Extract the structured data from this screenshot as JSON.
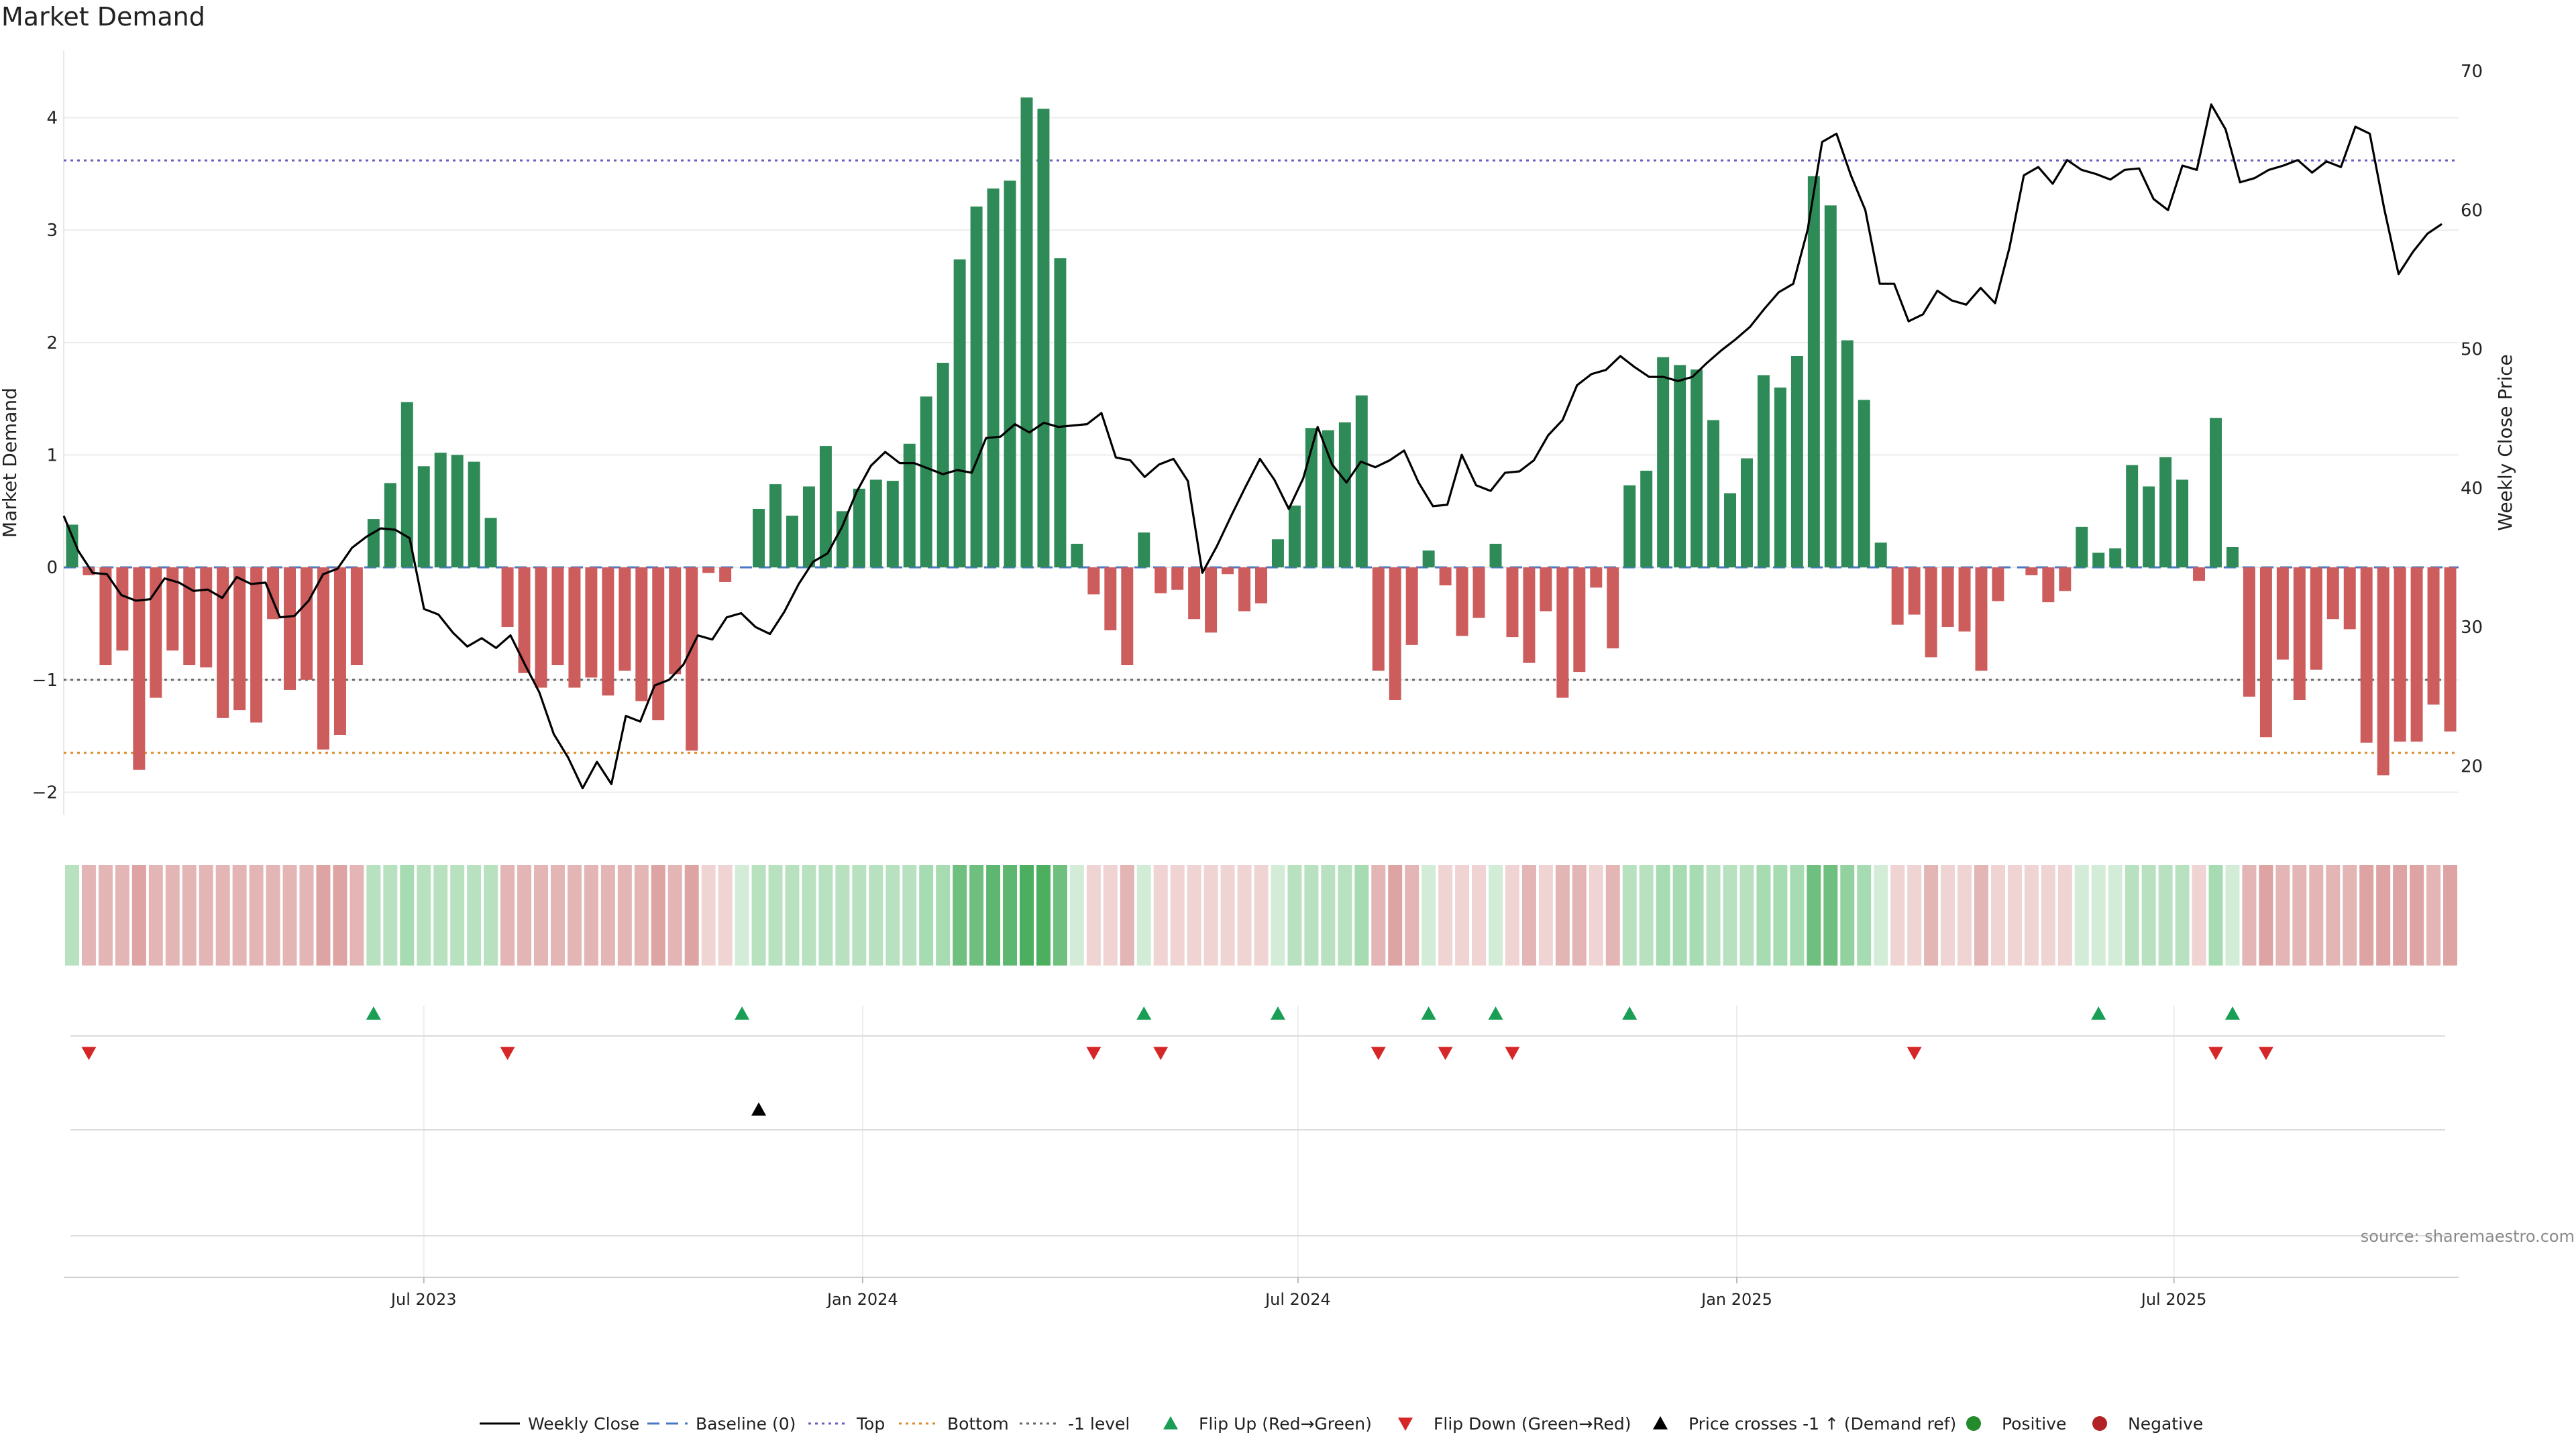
{
  "chart_data": {
    "type": "bar",
    "title": "Market Demand",
    "ylabel_left": "Market Demand",
    "ylabel_right": "Weekly Close Price",
    "ylim_left": [
      -2.2,
      4.6
    ],
    "yticks_left": [
      -2,
      -1,
      0,
      1,
      2,
      3,
      4
    ],
    "ytick_labels_left": [
      "−2",
      "−1",
      "0",
      "1",
      "2",
      "3",
      "4"
    ],
    "ylim_right": [
      16.5,
      71.5
    ],
    "yticks_right": [
      20,
      30,
      40,
      50,
      60,
      70
    ],
    "xtick_labels": [
      "Jul 2023",
      "Jan 2024",
      "Jul 2024",
      "Jan 2025",
      "Jul 2025"
    ],
    "xtick_week_index": [
      21.5,
      47.7,
      73.7,
      99.9,
      126.0
    ],
    "reference_lines": [
      {
        "name": "Baseline (0)",
        "value": 0,
        "color": "#4a78c4",
        "style": "dashed"
      },
      {
        "name": "Top",
        "value": 3.62,
        "color": "#6a5fc1",
        "style": "dotted"
      },
      {
        "name": "Bottom",
        "value": -1.65,
        "color": "#d98b2b",
        "style": "dotted"
      },
      {
        "name": "-1 level",
        "value": -1.0,
        "color": "#666666",
        "style": "dotted"
      }
    ],
    "demand": [
      0.38,
      -0.07,
      -0.87,
      -0.74,
      -1.8,
      -1.16,
      -0.74,
      -0.87,
      -0.89,
      -1.34,
      -1.27,
      -1.38,
      -0.46,
      -1.09,
      -1.0,
      -1.62,
      -1.49,
      -0.87,
      0.43,
      0.75,
      1.47,
      0.9,
      1.02,
      1.0,
      0.94,
      0.44,
      -0.53,
      -0.94,
      -1.07,
      -0.87,
      -1.07,
      -0.98,
      -1.14,
      -0.92,
      -1.19,
      -1.36,
      -0.95,
      -1.63,
      -0.05,
      -0.13,
      0.0,
      0.52,
      0.74,
      0.46,
      0.72,
      1.08,
      0.5,
      0.7,
      0.78,
      0.77,
      1.1,
      1.52,
      1.82,
      2.74,
      3.21,
      3.37,
      3.44,
      4.18,
      4.08,
      2.75,
      0.21,
      -0.24,
      -0.56,
      -0.87,
      0.31,
      -0.23,
      -0.2,
      -0.46,
      -0.58,
      -0.06,
      -0.39,
      -0.32,
      0.25,
      0.55,
      1.24,
      1.22,
      1.29,
      1.53,
      -0.92,
      -1.18,
      -0.69,
      0.15,
      -0.16,
      -0.61,
      -0.45,
      0.21,
      -0.62,
      -0.85,
      -0.39,
      -1.16,
      -0.93,
      -0.18,
      -0.72,
      0.73,
      0.86,
      1.87,
      1.8,
      1.76,
      1.31,
      0.66,
      0.97,
      1.71,
      1.6,
      1.88,
      3.48,
      3.22,
      2.02,
      1.49,
      0.22,
      -0.51,
      -0.42,
      -0.8,
      -0.53,
      -0.57,
      -0.92,
      -0.3,
      0.0,
      -0.07,
      -0.31,
      -0.21,
      0.36,
      0.13,
      0.17,
      0.91,
      0.72,
      0.98,
      0.78,
      -0.12,
      1.33,
      0.18,
      -1.15,
      -1.51,
      -0.82,
      -1.18,
      -0.91,
      -0.46,
      -0.55,
      -1.56,
      -1.85,
      -1.55,
      -1.55,
      -1.22,
      -1.46
    ],
    "weekly_close": [
      38.0,
      35.5,
      33.9,
      33.8,
      32.3,
      31.9,
      32.0,
      33.5,
      33.2,
      32.6,
      32.7,
      32.1,
      33.6,
      33.1,
      33.2,
      30.7,
      30.8,
      31.9,
      33.8,
      34.2,
      35.7,
      36.5,
      37.1,
      37.0,
      36.4,
      31.3,
      30.9,
      29.6,
      28.6,
      29.2,
      28.5,
      29.4,
      27.3,
      25.3,
      22.3,
      20.6,
      18.4,
      20.3,
      18.7,
      23.6,
      23.2,
      25.8,
      26.2,
      27.3,
      29.4,
      29.1,
      30.7,
      31.0,
      30.0,
      29.5,
      31.1,
      33.1,
      34.7,
      35.3,
      37.2,
      39.7,
      41.6,
      42.6,
      41.8,
      41.8,
      41.4,
      41.0,
      41.3,
      41.1,
      43.6,
      43.7,
      44.6,
      44.0,
      44.7,
      44.4,
      44.5,
      44.6,
      45.4,
      42.2,
      42.0,
      40.8,
      41.7,
      42.1,
      40.5,
      33.9,
      35.8,
      38.0,
      40.1,
      42.1,
      40.6,
      38.5,
      40.7,
      44.4,
      41.7,
      40.4,
      41.9,
      41.5,
      42.0,
      42.7,
      40.4,
      38.7,
      38.8,
      42.4,
      40.2,
      39.8,
      41.1,
      41.2,
      42.0,
      43.8,
      44.9,
      47.4,
      48.2,
      48.5,
      49.5,
      48.7,
      48.0,
      48.0,
      47.7,
      48.0,
      49.0,
      49.9,
      50.7,
      51.6,
      52.9,
      54.1,
      54.7,
      58.6,
      64.9,
      65.5,
      62.5,
      60.0,
      54.7,
      54.7,
      52.0,
      52.5,
      54.2,
      53.5,
      53.2,
      54.4,
      53.3,
      57.3,
      62.5,
      63.1,
      61.9,
      63.6,
      62.9,
      62.6,
      62.2,
      62.9,
      63.0,
      60.8,
      60.0,
      63.2,
      62.9,
      67.6,
      65.8,
      62.0,
      62.3,
      62.9,
      63.2,
      63.6,
      62.7,
      63.5,
      63.1,
      66.0,
      65.5,
      60.1,
      55.4,
      57.0,
      58.3,
      59.0
    ],
    "strip_colors": [
      "#b8e1c0",
      "#e4b5b5",
      "#e4b5b5",
      "#e4b5b5",
      "#dea3a3",
      "#e4b5b5",
      "#e4b5b5",
      "#e4b5b5",
      "#e4b5b5",
      "#e4b5b5",
      "#e4b5b5",
      "#e4b5b5",
      "#e4b5b5",
      "#e4b5b5",
      "#e4b5b5",
      "#dea3a3",
      "#dea3a3",
      "#e4b5b5",
      "#b8e1c0",
      "#b8e1c0",
      "#a7dbb1",
      "#b8e1c0",
      "#b8e1c0",
      "#b8e1c0",
      "#b8e1c0",
      "#b8e1c0",
      "#e4b5b5",
      "#e4b5b5",
      "#e4b5b5",
      "#e4b5b5",
      "#e4b5b5",
      "#e4b5b5",
      "#e4b5b5",
      "#e4b5b5",
      "#e4b5b5",
      "#dea3a3",
      "#e4b5b5",
      "#dea3a3",
      "#f0d3d3",
      "#f0d3d3",
      "#d3ecd7",
      "#b8e1c0",
      "#b8e1c0",
      "#b8e1c0",
      "#b8e1c0",
      "#b8e1c0",
      "#b8e1c0",
      "#b8e1c0",
      "#b8e1c0",
      "#b8e1c0",
      "#b8e1c0",
      "#a7dbb1",
      "#a7dbb1",
      "#6fc07e",
      "#6fc07e",
      "#5eb770",
      "#5eb770",
      "#4caf5f",
      "#4caf5f",
      "#6fc07e",
      "#d3ecd7",
      "#f0d3d3",
      "#f0d3d3",
      "#e4b5b5",
      "#d3ecd7",
      "#f0d3d3",
      "#f0d3d3",
      "#f0d3d3",
      "#f0d3d3",
      "#f0d3d3",
      "#f0d3d3",
      "#f0d3d3",
      "#d3ecd7",
      "#b8e1c0",
      "#b8e1c0",
      "#b8e1c0",
      "#b8e1c0",
      "#a7dbb1",
      "#e4b5b5",
      "#dea3a3",
      "#e4b5b5",
      "#d3ecd7",
      "#f0d3d3",
      "#f0d3d3",
      "#f0d3d3",
      "#d3ecd7",
      "#f0d3d3",
      "#e4b5b5",
      "#f0d3d3",
      "#e4b5b5",
      "#e4b5b5",
      "#f0d3d3",
      "#e4b5b5",
      "#b8e1c0",
      "#b8e1c0",
      "#a7dbb1",
      "#a7dbb1",
      "#a7dbb1",
      "#b8e1c0",
      "#b8e1c0",
      "#b8e1c0",
      "#a7dbb1",
      "#a7dbb1",
      "#a7dbb1",
      "#6fc07e",
      "#6fc07e",
      "#94d1a0",
      "#a7dbb1",
      "#d3ecd7",
      "#f0d3d3",
      "#f0d3d3",
      "#e4b5b5",
      "#f0d3d3",
      "#f0d3d3",
      "#e4b5b5",
      "#f0d3d3",
      "#f0d3d3",
      "#f0d3d3",
      "#f0d3d3",
      "#f0d3d3",
      "#d3ecd7",
      "#d3ecd7",
      "#d3ecd7",
      "#b8e1c0",
      "#b8e1c0",
      "#b8e1c0",
      "#b8e1c0",
      "#f0d3d3",
      "#a7dbb1",
      "#d3ecd7",
      "#e4b5b5",
      "#dea3a3",
      "#e4b5b5",
      "#e4b5b5",
      "#e4b5b5",
      "#e4b5b5",
      "#e4b5b5",
      "#dea3a3",
      "#dea3a3",
      "#dea3a3",
      "#dea3a3",
      "#e4b5b5",
      "#dea3a3"
    ],
    "flip_up_weeks": [
      18,
      40,
      64,
      72,
      81,
      85,
      93,
      121,
      129
    ],
    "flip_down_weeks": [
      1,
      26,
      61,
      65,
      78,
      82,
      86,
      110,
      128,
      131
    ],
    "price_cross_weeks": [
      41
    ],
    "source_note": "source: sharemaestro.com",
    "legend": [
      {
        "label": "Weekly Close",
        "kind": "line",
        "color": "#000000"
      },
      {
        "label": "Baseline (0)",
        "kind": "dash",
        "color": "#4a78c4"
      },
      {
        "label": "Top",
        "kind": "dot",
        "color": "#6a5fc1"
      },
      {
        "label": "Bottom",
        "kind": "dot",
        "color": "#d98b2b"
      },
      {
        "label": "-1 level",
        "kind": "dot",
        "color": "#666666"
      },
      {
        "label": "Flip Up (Red→Green)",
        "kind": "tri-up",
        "color": "#1a9e55"
      },
      {
        "label": "Flip Down (Green→Red)",
        "kind": "tri-down",
        "color": "#d62728"
      },
      {
        "label": "Price crosses -1 ↑ (Demand ref)",
        "kind": "tri-up",
        "color": "#000000"
      },
      {
        "label": "Positive",
        "kind": "dot-marker",
        "color": "#238b2c"
      },
      {
        "label": "Negative",
        "kind": "dot-marker",
        "color": "#b22222"
      }
    ],
    "colors": {
      "positive_bar": "#2e8b57",
      "negative_bar": "#cd5c5c"
    }
  }
}
